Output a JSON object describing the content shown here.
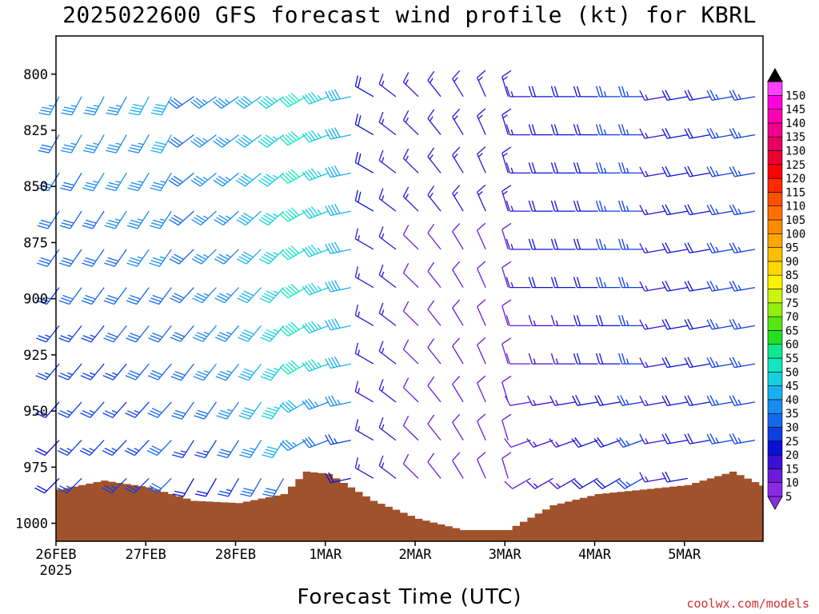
{
  "title": "2025022600 GFS forecast wind profile (kt) for KBRL",
  "credit": "coolwx.com/models",
  "chart_data": {
    "type": "wind-barb-profile",
    "title": "2025022600 GFS forecast wind profile (kt) for KBRL",
    "xlabel": "Forecast Time (UTC)",
    "ylabel": "",
    "x_ticks": [
      {
        "label": "26FEB",
        "sublabel": "2025",
        "hour": 0
      },
      {
        "label": "27FEB",
        "hour": 24
      },
      {
        "label": "28FEB",
        "hour": 48
      },
      {
        "label": "1MAR",
        "hour": 72
      },
      {
        "label": "2MAR",
        "hour": 96
      },
      {
        "label": "3MAR",
        "hour": 120
      },
      {
        "label": "4MAR",
        "hour": 144
      },
      {
        "label": "5MAR",
        "hour": 168
      }
    ],
    "xlim_hours": [
      0,
      189
    ],
    "y_ticks": [
      "800",
      "825",
      "850",
      "875",
      "900",
      "925",
      "950",
      "975",
      "1000"
    ],
    "ylim": [
      1008,
      783
    ],
    "colorbar": {
      "labels": [
        "5",
        "10",
        "15",
        "20",
        "25",
        "30",
        "35",
        "40",
        "45",
        "50",
        "55",
        "60",
        "65",
        "70",
        "75",
        "80",
        "85",
        "90",
        "95",
        "100",
        "105",
        "110",
        "115",
        "120",
        "125",
        "130",
        "135",
        "140",
        "145",
        "150"
      ],
      "colors": [
        "#8a2be2",
        "#6a1bd9",
        "#3a0fd6",
        "#0a10d8",
        "#0c3ee2",
        "#1468ec",
        "#1a8cf0",
        "#19b0f0",
        "#16d0e0",
        "#12e8c0",
        "#10e890",
        "#22e020",
        "#55e610",
        "#90ee10",
        "#ccf410",
        "#fff200",
        "#ffd800",
        "#ffbf00",
        "#ffa600",
        "#ff8c00",
        "#ff7000",
        "#ff5000",
        "#ff2a00",
        "#ff0000",
        "#ee0032",
        "#e60060",
        "#f0008c",
        "#ff00b4",
        "#ff00dc",
        "#ff40ff"
      ]
    },
    "terrain": {
      "color": "#a0522d",
      "hours": [
        0,
        12,
        24,
        36,
        48,
        60,
        66,
        72,
        84,
        96,
        108,
        120,
        132,
        144,
        156,
        168,
        180,
        189
      ],
      "surface_pressure": [
        985,
        981,
        984,
        990,
        991,
        987,
        977,
        978,
        990,
        998,
        1003,
        1003,
        992,
        987,
        985,
        983,
        977,
        984
      ]
    },
    "wind_hours": [
      0,
      6,
      12,
      18,
      24,
      30,
      36,
      42,
      48,
      54,
      60,
      66,
      72,
      78,
      84,
      90,
      96,
      102,
      108,
      114,
      120,
      126,
      132,
      138,
      144,
      150,
      156,
      162,
      168,
      174,
      180,
      186
    ],
    "wind_pressures": [
      810,
      827,
      844,
      861,
      878,
      895,
      912,
      929,
      946,
      963,
      980
    ],
    "wind_profile_note": "Barbs shown for each forecast time and level; wind from southwest ~20-40 kt early, 45-55 kt near 1MAR, 5-15 kt 2-3MAR, backing westerly 15-30 kt by 4MAR."
  }
}
